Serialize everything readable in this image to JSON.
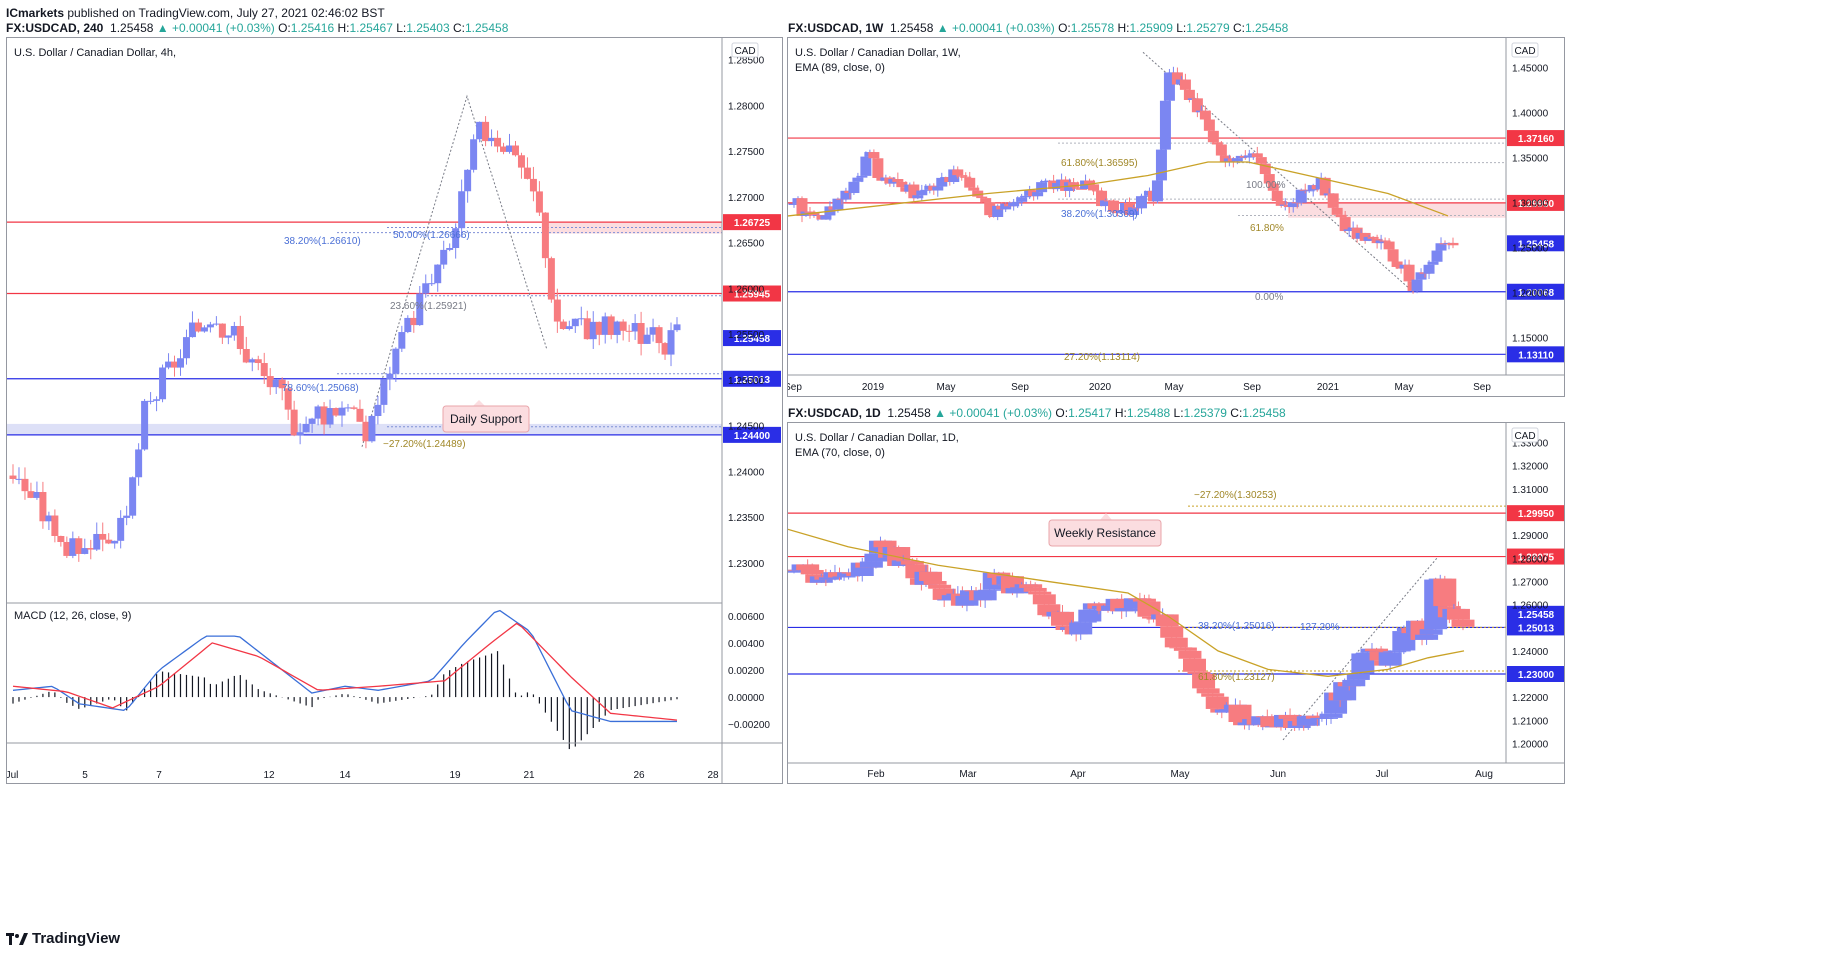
{
  "publisher_line": {
    "user": "ICmarkets",
    "text": " published on TradingView.com, July 27, 2021 02:46:02 BST"
  },
  "footer": {
    "brand": "TradingView",
    "logo_icon": "tradingview-logo-icon"
  },
  "colors": {
    "up": "#7b86f2",
    "down": "#f77c80",
    "ema": "#c9a227",
    "resistance": "#f23645",
    "support": "#2a2ee6",
    "fib": "#4a6fd6",
    "fib_gold": "#c9a227",
    "macd": "#3a6fd8",
    "signal": "#f23645"
  },
  "chart_data": [
    {
      "id": "h4",
      "type": "candlestick",
      "header": {
        "sym": "FX:USDCAD, 240",
        "o": "1.25416",
        "h": "1.25467",
        "l": "1.25403",
        "c": "1.25458",
        "chg": "+0.00041 (+0.03%)"
      },
      "title": "U.S. Dollar / Canadian Dollar, 4h,",
      "currency": "CAD",
      "ylim": [
        1.2265,
        1.2865
      ],
      "yticks": [
        "1.28500",
        "1.28000",
        "1.27500",
        "1.27000",
        "1.26500",
        "1.26000",
        "1.25500",
        "1.25000",
        "1.24500",
        "1.24000",
        "1.23500",
        "1.23000"
      ],
      "ytick_values": [
        1.285,
        1.28,
        1.275,
        1.27,
        1.265,
        1.26,
        1.255,
        1.25,
        1.245,
        1.24,
        1.235,
        1.23
      ],
      "xticks": [
        "Jul",
        "5",
        "7",
        "12",
        "14",
        "19",
        "21",
        "26",
        "28"
      ],
      "hlines": [
        {
          "y": 1.26725,
          "label": "1.26725",
          "color": "#f23645"
        },
        {
          "y": 1.25945,
          "label": "1.25945",
          "color": "#f23645"
        },
        {
          "y": 1.25013,
          "label": "1.25013",
          "color": "#2a2ee6"
        },
        {
          "y": 1.244,
          "label": "1.24400",
          "color": "#2a2ee6"
        }
      ],
      "last_price": "1.25458",
      "fib_labels": [
        "50.00%(1.26666)",
        "38.20%(1.26610)",
        "23.60%(1.25921)",
        "78.60%(1.25068)",
        "−27.20%(1.24489)"
      ],
      "annotation": "Daily Support",
      "indicator": {
        "name": "MACD (12, 26, close, 9)",
        "yticks": [
          "0.00600",
          "0.00400",
          "0.00200",
          "0.00000",
          "−0.00200"
        ],
        "ylim": [
          -0.0028,
          0.0068
        ]
      }
    },
    {
      "id": "w1",
      "type": "candlestick",
      "header": {
        "sym": "FX:USDCAD, 1W",
        "o": "1.25578",
        "h": "1.25909",
        "l": "1.25279",
        "c": "1.25458",
        "chg": "+0.00041 (+0.03%)"
      },
      "title": "U.S. Dollar / Canadian Dollar, 1W,",
      "indicator_label": "EMA (89, close, 0)",
      "currency": "CAD",
      "ylim": [
        1.117,
        1.474
      ],
      "yticks": [
        "1.45000",
        "1.40000",
        "1.35000",
        "1.30000",
        "1.25000",
        "1.20000",
        "1.15000"
      ],
      "ytick_values": [
        1.45,
        1.4,
        1.35,
        1.3,
        1.25,
        1.2,
        1.15
      ],
      "xticks": [
        "Sep",
        "2019",
        "May",
        "Sep",
        "2020",
        "May",
        "Sep",
        "2021",
        "May",
        "Sep"
      ],
      "hlines": [
        {
          "y": 1.3716,
          "label": "1.37160",
          "color": "#f23645"
        },
        {
          "y": 1.2995,
          "label": "1.29950",
          "color": "#f23645"
        },
        {
          "y": 1.20068,
          "label": "1.20068",
          "color": "#2a2ee6"
        },
        {
          "y": 1.1311,
          "label": "1.13110",
          "color": "#2a2ee6"
        }
      ],
      "last_price": "1.25458",
      "fib_labels": [
        "61.80%(1.36595)",
        "38.20%(1.30369)",
        "100.00%",
        "61.80%",
        "0.00%",
        "27.20%(1.13114)"
      ]
    },
    {
      "id": "d1",
      "type": "candlestick",
      "header": {
        "sym": "FX:USDCAD, 1D",
        "o": "1.25417",
        "h": "1.25488",
        "l": "1.25379",
        "c": "1.25458",
        "chg": "+0.00041 (+0.03%)"
      },
      "title": "U.S. Dollar / Canadian Dollar, 1D,",
      "indicator_label": "EMA (70, close, 0)",
      "currency": "CAD",
      "ylim": [
        1.195,
        1.335
      ],
      "yticks": [
        "1.33000",
        "1.32000",
        "1.31000",
        "1.29000",
        "1.28000",
        "1.27000",
        "1.26000",
        "1.24000",
        "1.22000",
        "1.21000",
        "1.20000"
      ],
      "ytick_values": [
        1.33,
        1.32,
        1.31,
        1.29,
        1.28,
        1.27,
        1.26,
        1.24,
        1.22,
        1.21,
        1.2
      ],
      "xticks": [
        "Feb",
        "Mar",
        "Apr",
        "May",
        "Jun",
        "Jul",
        "Aug"
      ],
      "hlines": [
        {
          "y": 1.2995,
          "label": "1.29950",
          "color": "#f23645"
        },
        {
          "y": 1.28075,
          "label": "1.28075",
          "color": "#f23645"
        },
        {
          "y": 1.25013,
          "label": "1.25013",
          "color": "#2a2ee6"
        },
        {
          "y": 1.23,
          "label": "1.23000",
          "color": "#2a2ee6"
        }
      ],
      "last_price": "1.25458",
      "fib_labels": [
        "−27.20%(1.30253)",
        "127.20%",
        "38.20%(1.25016)",
        "61.80%(1.23127)"
      ],
      "annotation": "Weekly Resistance"
    }
  ]
}
